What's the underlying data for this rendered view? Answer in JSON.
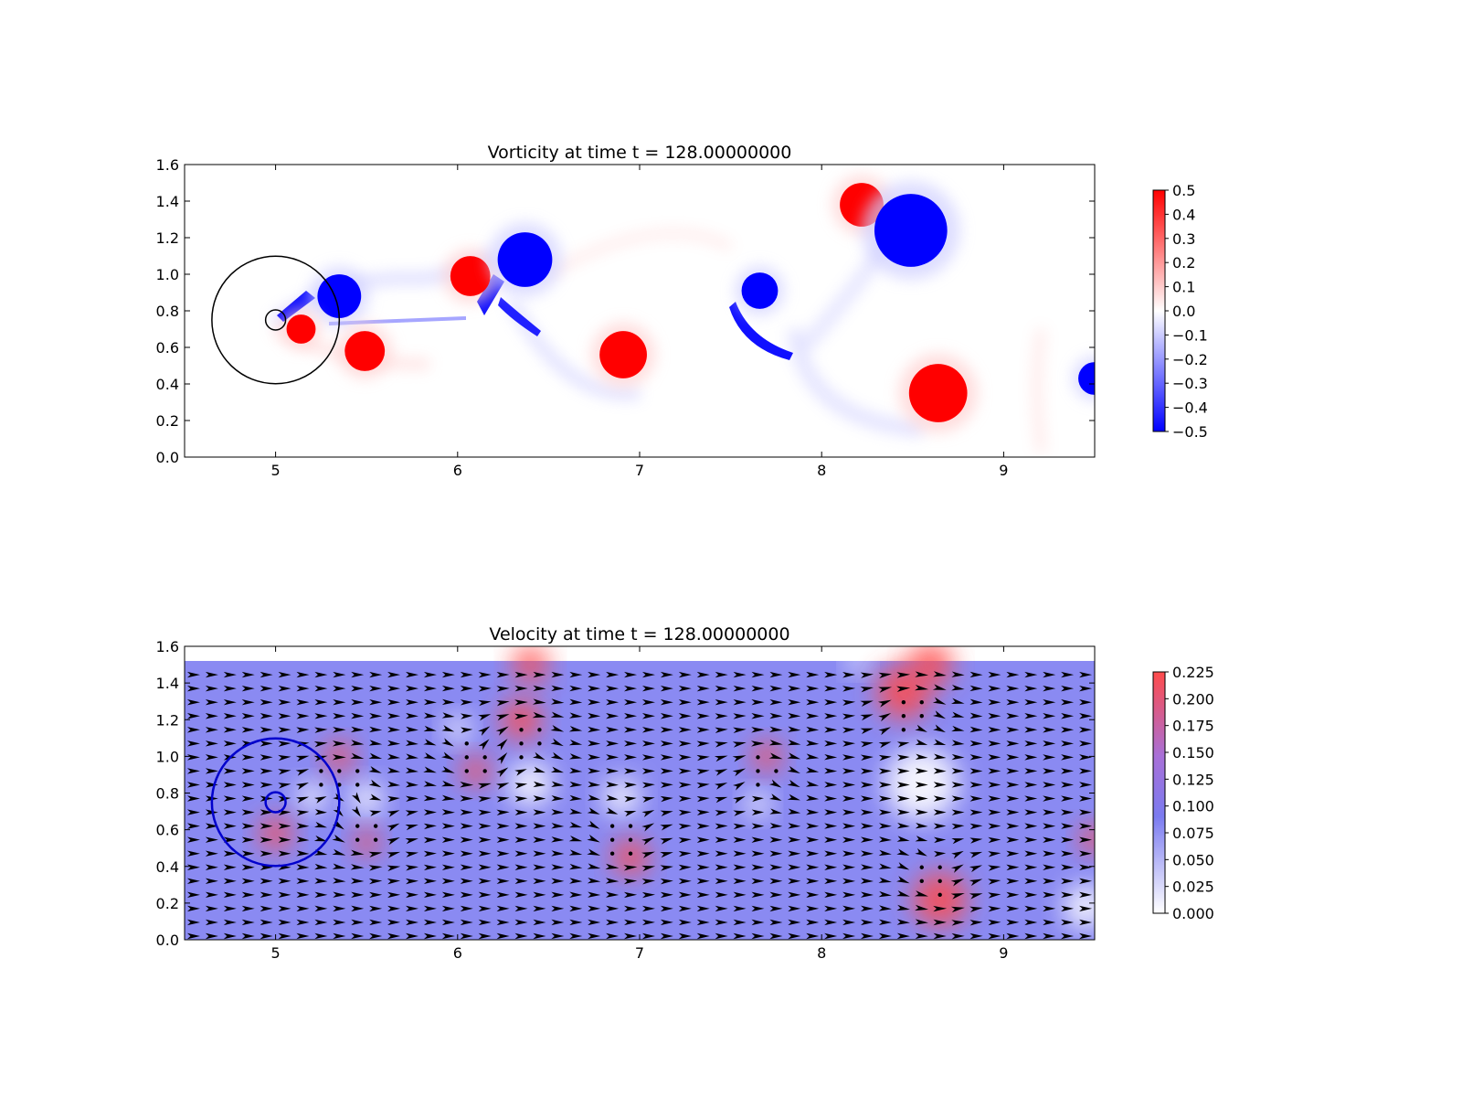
{
  "chart_data": [
    {
      "type": "heatmap",
      "title": "Vorticity at time t =    128.00000000",
      "xlabel": "",
      "ylabel": "",
      "xlim": [
        4.5,
        9.5
      ],
      "ylim": [
        0.0,
        1.6
      ],
      "xticks": [
        "5",
        "6",
        "7",
        "8",
        "9"
      ],
      "yticks": [
        "0.0",
        "0.2",
        "0.4",
        "0.6",
        "0.8",
        "1.0",
        "1.2",
        "1.4",
        "1.6"
      ],
      "colormap": "bwr",
      "colorbar": {
        "min": -0.5,
        "max": 0.5,
        "ticks": [
          "0.5",
          "0.4",
          "0.3",
          "0.2",
          "0.1",
          "0.0",
          "−0.1",
          "−0.2",
          "−0.3",
          "−0.4",
          "−0.5"
        ]
      },
      "vortices": [
        {
          "x": 5.35,
          "y": 0.88,
          "r": 0.12,
          "value": -0.5
        },
        {
          "x": 5.49,
          "y": 0.58,
          "r": 0.11,
          "value": 0.5
        },
        {
          "x": 5.14,
          "y": 0.7,
          "r": 0.08,
          "value": 0.5
        },
        {
          "x": 6.07,
          "y": 0.99,
          "r": 0.11,
          "value": 0.5
        },
        {
          "x": 6.37,
          "y": 1.08,
          "r": 0.15,
          "value": -0.5
        },
        {
          "x": 6.91,
          "y": 0.56,
          "r": 0.13,
          "value": 0.5
        },
        {
          "x": 7.66,
          "y": 0.91,
          "r": 0.1,
          "value": -0.5
        },
        {
          "x": 8.22,
          "y": 1.38,
          "r": 0.12,
          "value": 0.5
        },
        {
          "x": 8.49,
          "y": 1.24,
          "r": 0.2,
          "value": -0.5
        },
        {
          "x": 8.64,
          "y": 0.35,
          "r": 0.16,
          "value": 0.5
        },
        {
          "x": 9.5,
          "y": 0.43,
          "r": 0.09,
          "value": -0.5
        }
      ],
      "circles": [
        {
          "x": 5.0,
          "y": 0.75,
          "r": 0.35,
          "color": "#000000"
        },
        {
          "x": 5.0,
          "y": 0.75,
          "r": 0.055,
          "color": "#000000"
        }
      ]
    },
    {
      "type": "heatmap",
      "title": "Velocity at time t =    128.00000000",
      "xlabel": "",
      "ylabel": "",
      "xlim": [
        4.5,
        9.5
      ],
      "ylim": [
        0.0,
        1.6
      ],
      "xticks": [
        "5",
        "6",
        "7",
        "8",
        "9"
      ],
      "yticks": [
        "0.0",
        "0.2",
        "0.4",
        "0.6",
        "0.8",
        "1.0",
        "1.2",
        "1.4",
        "1.6"
      ],
      "field_ymax": 1.52,
      "colormap": "white-blue-red",
      "colorbar": {
        "min": 0.0,
        "max": 0.225,
        "ticks": [
          "0.225",
          "0.200",
          "0.175",
          "0.150",
          "0.125",
          "0.100",
          "0.075",
          "0.050",
          "0.025",
          "0.000"
        ]
      },
      "quiver": {
        "x_step": 0.1,
        "y_step": 0.075
      },
      "circles": [
        {
          "x": 5.0,
          "y": 0.75,
          "r": 0.35,
          "color": "#0000cc"
        },
        {
          "x": 5.0,
          "y": 0.75,
          "r": 0.055,
          "color": "#0000cc"
        }
      ]
    }
  ],
  "colors": {
    "red": "#ff0000",
    "blue": "#0000ff",
    "white": "#ffffff",
    "speed_low": "#ffffff",
    "speed_mid": "#7b7bf0",
    "speed_high": "#ff4b4b"
  }
}
